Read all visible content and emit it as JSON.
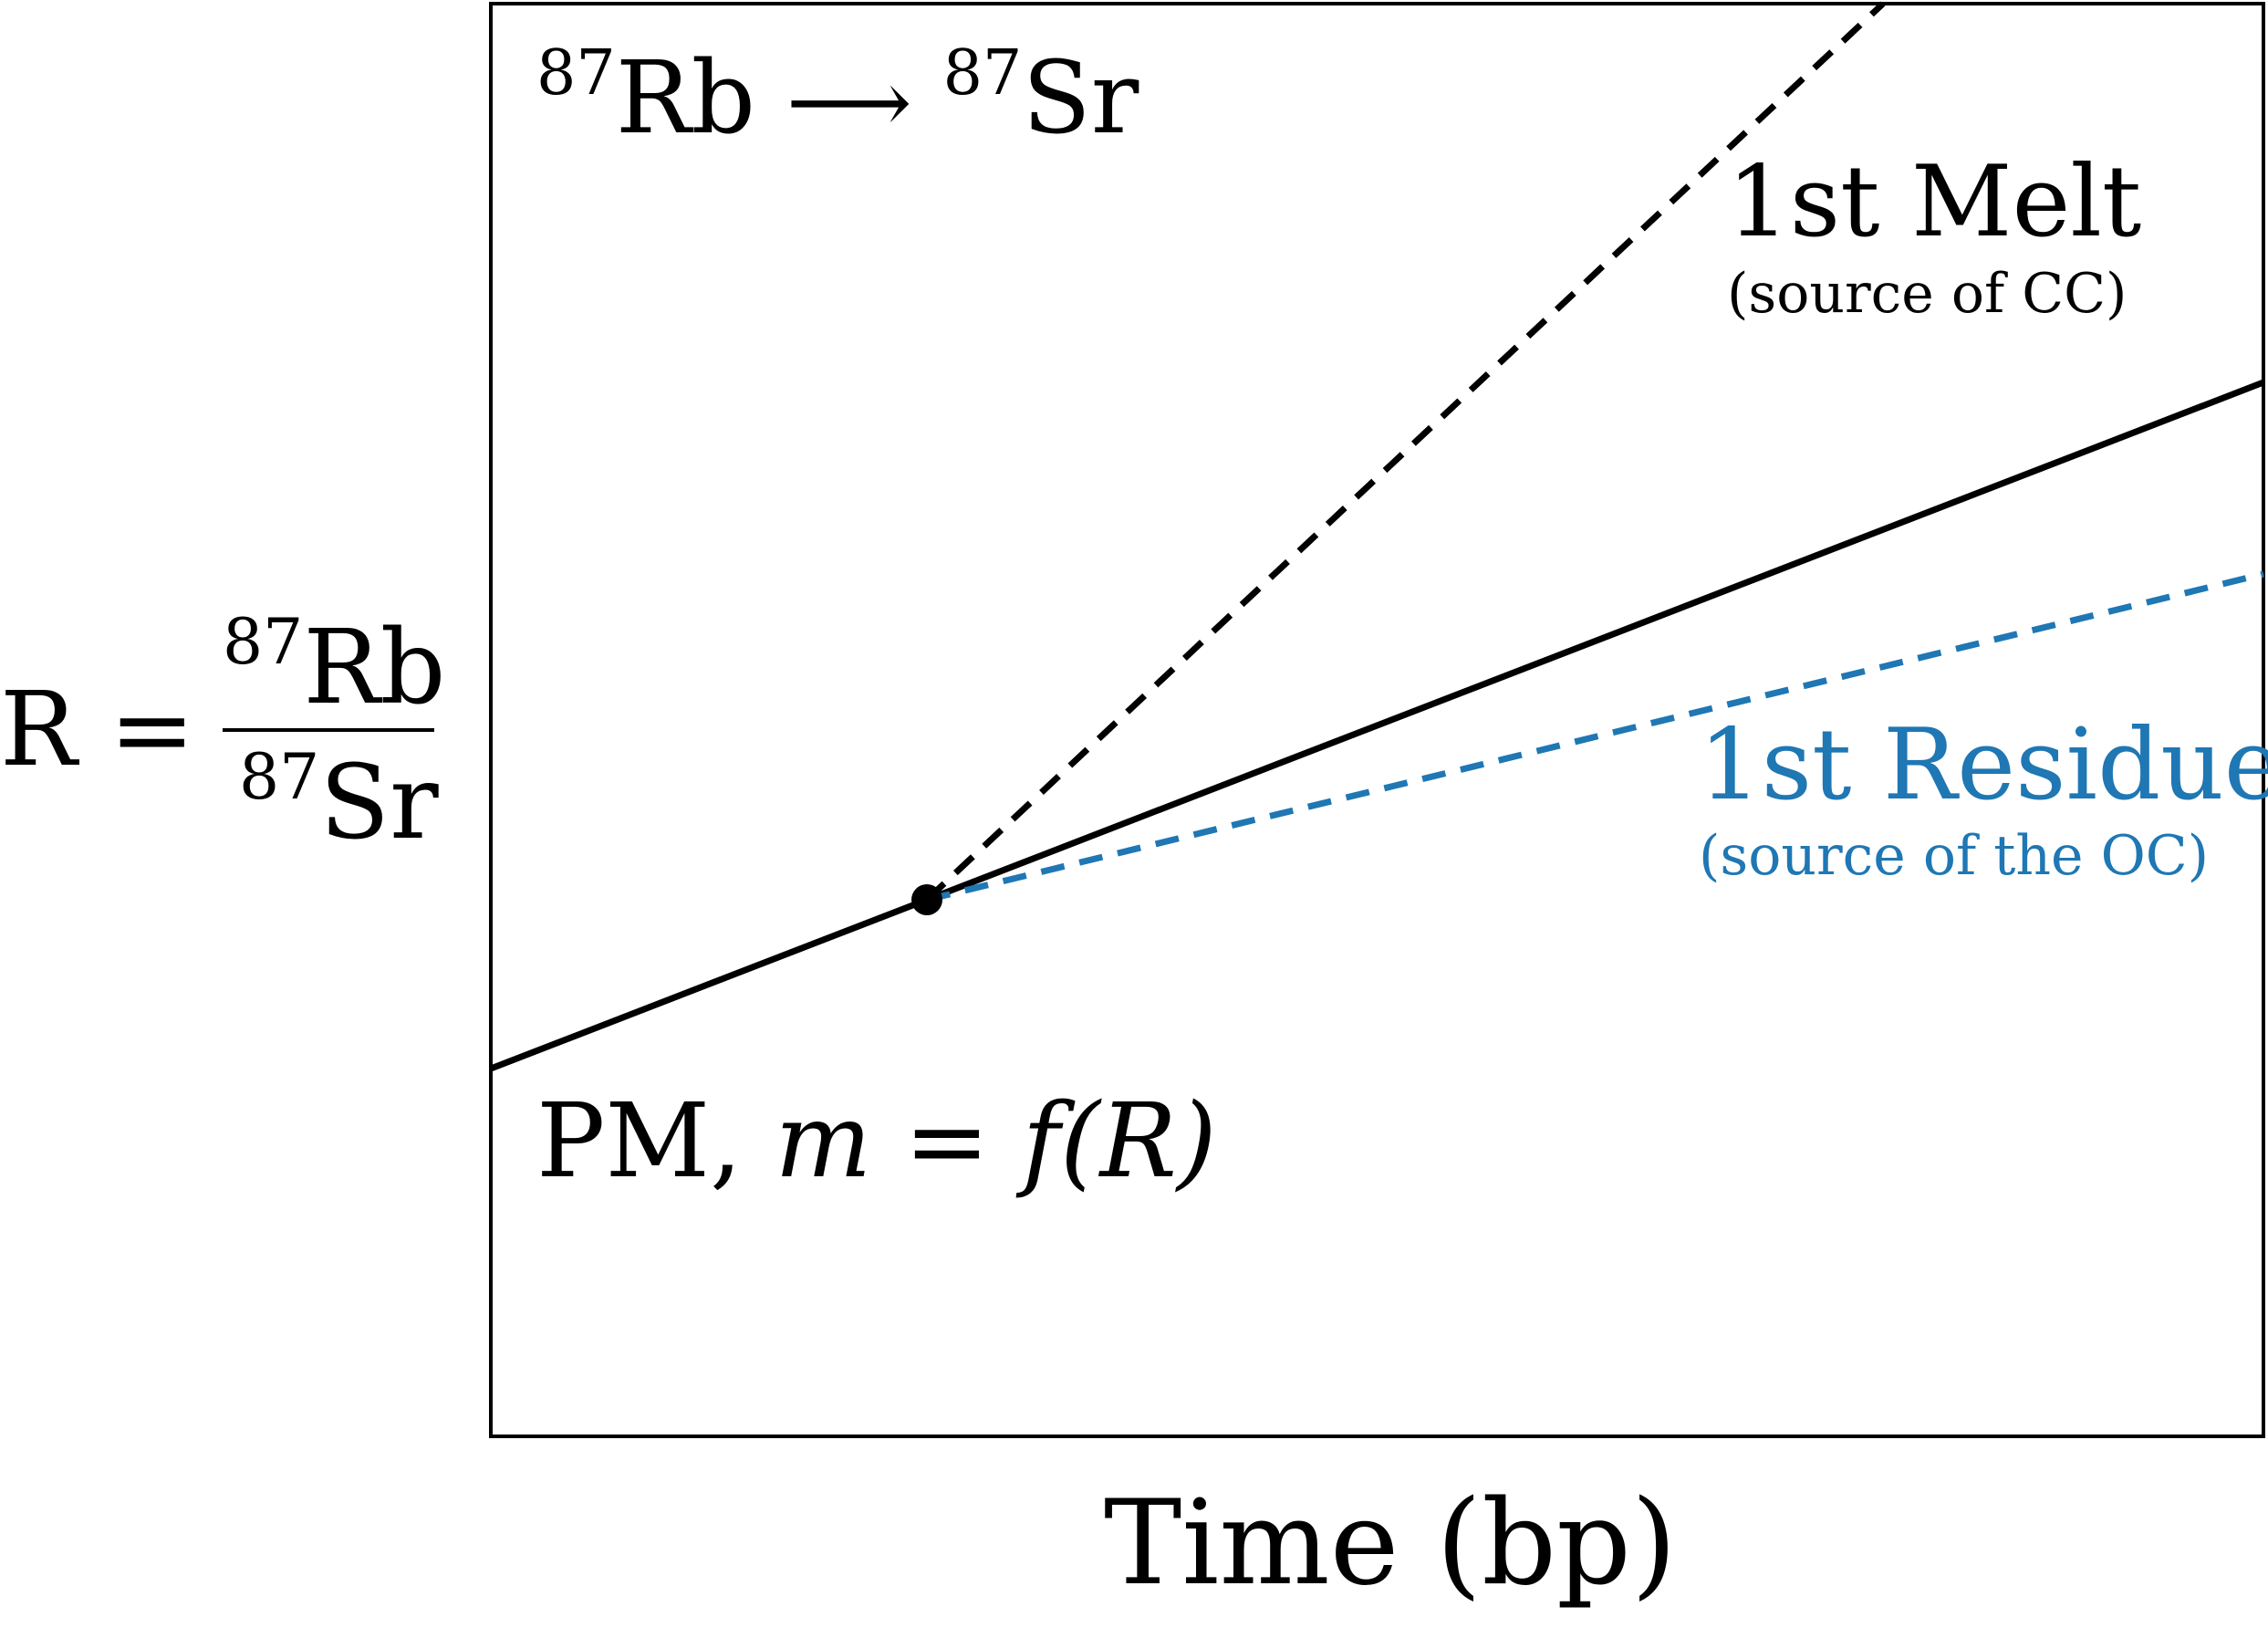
{
  "reaction": {
    "parent": "Rb",
    "parent_mass": "87",
    "arrow": "⟶",
    "daughter": "Sr",
    "daughter_mass": "87"
  },
  "melt": {
    "title": "1st Melt",
    "subtitle": "(source of CC)",
    "color": "#000000"
  },
  "residue": {
    "title": "1st Residue",
    "subtitle": "(source of the OC)",
    "color": "#1f77b4"
  },
  "primitive_mantle": {
    "prefix": "PM,",
    "equation": "m = f(R)"
  },
  "y_axis": {
    "lhs": "R =",
    "numerator_mass": "87",
    "numerator": "Rb",
    "denominator_mass": "87",
    "denominator": "Sr"
  },
  "x_axis": {
    "label": "Time (bp)"
  },
  "colors": {
    "line": "#000000",
    "residue": "#1f77b4",
    "frame": "#000000"
  }
}
